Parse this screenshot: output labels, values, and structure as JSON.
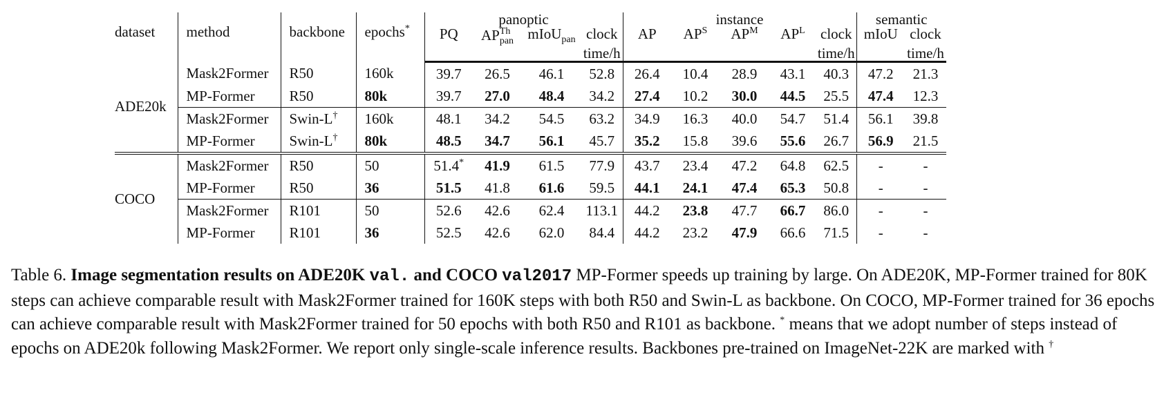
{
  "table": {
    "headers": {
      "dataset": "dataset",
      "method": "method",
      "backbone": "backbone",
      "epochs": "epochs",
      "epochs_mark": "*",
      "groups": {
        "panoptic": "panoptic",
        "instance": "instance",
        "semantic": "semantic"
      },
      "pq": "PQ",
      "ap_th_base": "AP",
      "ap_th_sup": "Th",
      "ap_th_sub": "pan",
      "miou_pan_base": "mIoU",
      "miou_pan_sub": "pan",
      "clock_line1": "clock",
      "clock_line2": "time/h",
      "ap": "AP",
      "aps_base": "AP",
      "aps_sup": "S",
      "apm_base": "AP",
      "apm_sup": "M",
      "apl_base": "AP",
      "apl_sup": "L",
      "miou": "mIoU"
    },
    "datasets": [
      "ADE20k",
      "COCO"
    ],
    "dagger": "†",
    "star": "*",
    "rows": [
      {
        "method": "Mask2Former",
        "backbone": "R50",
        "epochs": "160k",
        "pq": "39.7",
        "apth": "26.5",
        "mioupan": "46.1",
        "pclock": "52.8",
        "ap": "26.4",
        "aps": "10.4",
        "apm": "28.9",
        "apl": "43.1",
        "iclock": "40.3",
        "miou": "47.2",
        "sclock": "21.3"
      },
      {
        "method": "MP-Former",
        "backbone": "R50",
        "epochs": "80k",
        "pq": "39.7",
        "apth": "27.0",
        "mioupan": "48.4",
        "pclock": "34.2",
        "ap": "27.4",
        "aps": "10.2",
        "apm": "30.0",
        "apl": "44.5",
        "iclock": "25.5",
        "miou": "47.4",
        "sclock": "12.3"
      },
      {
        "method": "Mask2Former",
        "backbone": "Swin-L",
        "epochs": "160k",
        "pq": "48.1",
        "apth": "34.2",
        "mioupan": "54.5",
        "pclock": "63.2",
        "ap": "34.9",
        "aps": "16.3",
        "apm": "40.0",
        "apl": "54.7",
        "iclock": "51.4",
        "miou": "56.1",
        "sclock": "39.8"
      },
      {
        "method": "MP-Former",
        "backbone": "Swin-L",
        "epochs": "80k",
        "pq": "48.5",
        "apth": "34.7",
        "mioupan": "56.1",
        "pclock": "45.7",
        "ap": "35.2",
        "aps": "15.8",
        "apm": "39.6",
        "apl": "55.6",
        "iclock": "26.7",
        "miou": "56.9",
        "sclock": "21.5"
      },
      {
        "method": "Mask2Former",
        "backbone": "R50",
        "epochs": "50",
        "pq": "51.4",
        "apth": "41.9",
        "mioupan": "61.5",
        "pclock": "77.9",
        "ap": "43.7",
        "aps": "23.4",
        "apm": "47.2",
        "apl": "64.8",
        "iclock": "62.5",
        "miou": "-",
        "sclock": "-"
      },
      {
        "method": "MP-Former",
        "backbone": "R50",
        "epochs": "36",
        "pq": "51.5",
        "apth": "41.8",
        "mioupan": "61.6",
        "pclock": "59.5",
        "ap": "44.1",
        "aps": "24.1",
        "apm": "47.4",
        "apl": "65.3",
        "iclock": "50.8",
        "miou": "-",
        "sclock": "-"
      },
      {
        "method": "Mask2Former",
        "backbone": "R101",
        "epochs": "50",
        "pq": "52.6",
        "apth": "42.6",
        "mioupan": "62.4",
        "pclock": "113.1",
        "ap": "44.2",
        "aps": "23.8",
        "apm": "47.7",
        "apl": "66.7",
        "iclock": "86.0",
        "miou": "-",
        "sclock": "-"
      },
      {
        "method": "MP-Former",
        "backbone": "R101",
        "epochs": "36",
        "pq": "52.5",
        "apth": "42.6",
        "mioupan": "62.0",
        "pclock": "84.4",
        "ap": "44.2",
        "aps": "23.2",
        "apm": "47.9",
        "apl": "66.6",
        "iclock": "71.5",
        "miou": "-",
        "sclock": "-"
      }
    ]
  },
  "caption": {
    "label": "Table 6.",
    "bold_1": "Image segmentation results on ADE20K",
    "mono_1": "val.",
    "bold_2": "and COCO",
    "mono_2": "val2017",
    "text_1": "MP-Former speeds up training by large. On ADE20K, MP-Former trained for 80K steps can achieve comparable result with Mask2Former trained for 160K steps with both R50 and Swin-L as backbone. On COCO, MP-Former trained for 36 epochs can achieve comparable result with Mask2Former trained for 50 epochs with both R50 and R101 as backbone.",
    "star": "*",
    "text_2": "means that we adopt number of steps instead of epochs on ADE20k following Mask2Former. We report only single-scale inference results. Backbones pre-trained on ImageNet-22K are marked with",
    "dagger": "†"
  }
}
